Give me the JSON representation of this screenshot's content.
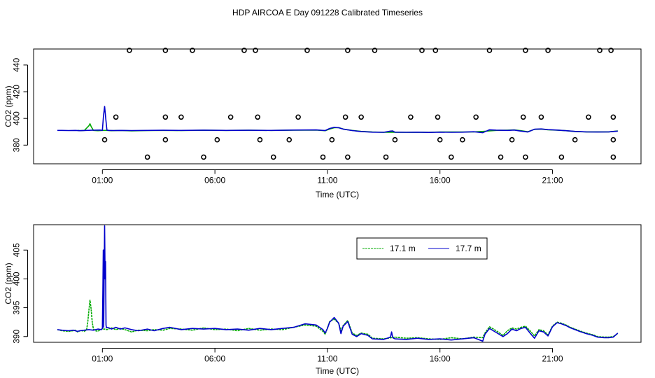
{
  "title": "HDP AIRCOA E  Day 091228  Calibrated Timeseries",
  "chart_data": [
    {
      "type": "scatter",
      "xlabel": "Time (UTC)",
      "ylabel": "CO2 (ppm)",
      "xlim": [
        -1.0,
        24.0
      ],
      "ylim": [
        366,
        452
      ],
      "x_ticks": [
        {
          "value": 1,
          "label": "01:00"
        },
        {
          "value": 6,
          "label": "06:00"
        },
        {
          "value": 11,
          "label": "11:00"
        },
        {
          "value": 16,
          "label": "16:00"
        },
        {
          "value": 21,
          "label": "21:00"
        }
      ],
      "y_ticks": [
        380,
        400,
        420,
        440
      ],
      "series": [
        {
          "color": "#00aa00",
          "x": [
            -0.1,
            0.0,
            0.2,
            0.4,
            0.45,
            0.5,
            0.6,
            0.8,
            1.0,
            1.1,
            1.2,
            1.4,
            1.8,
            2.3,
            3.0,
            3.7,
            4.5,
            5.5,
            6.5,
            7.5,
            8.5,
            9.5,
            10.5,
            10.9,
            11.1,
            11.3,
            11.5,
            11.7,
            12.1,
            12.5,
            13.0,
            13.5,
            14.0,
            14.5,
            15.0,
            15.5,
            16.0,
            16.5,
            17.0,
            17.5,
            18.0,
            18.5,
            19.0,
            19.3,
            19.6,
            19.9,
            20.2,
            20.5,
            20.8,
            21.2,
            21.6,
            22.0,
            22.5,
            23.0,
            23.5,
            23.9
          ],
          "y": [
            391.0,
            390.8,
            391.0,
            394.5,
            396.0,
            394.0,
            391.0,
            390.8,
            391.0,
            391.0,
            391.0,
            390.8,
            391.0,
            390.7,
            390.9,
            391.0,
            390.9,
            391.1,
            391.0,
            391.1,
            391.0,
            391.2,
            391.3,
            390.8,
            392.0,
            393.0,
            393.1,
            392.0,
            391.0,
            390.3,
            389.8,
            389.6,
            389.7,
            389.6,
            389.7,
            389.6,
            389.8,
            389.8,
            389.8,
            389.9,
            390.4,
            391.0,
            391.2,
            391.4,
            390.8,
            390.0,
            391.8,
            392.0,
            391.5,
            391.2,
            390.8,
            390.2,
            389.9,
            389.9,
            389.9,
            390.6
          ]
        },
        {
          "color": "#0000cc",
          "x": [
            -1.0,
            -0.8,
            -0.5,
            -0.2,
            0.0,
            0.3,
            0.5,
            0.7,
            0.9,
            1.0,
            1.05,
            1.1,
            1.15,
            1.2,
            1.3,
            1.5,
            1.8,
            2.3,
            3.0,
            3.7,
            4.5,
            5.5,
            6.5,
            7.5,
            8.5,
            9.5,
            10.5,
            10.9,
            11.1,
            11.3,
            11.5,
            11.7,
            12.1,
            12.5,
            13.0,
            13.5,
            13.8,
            13.9,
            14.0,
            14.5,
            15.0,
            15.5,
            16.0,
            16.5,
            17.0,
            17.5,
            17.9,
            18.0,
            18.2,
            18.5,
            19.0,
            19.3,
            19.6,
            19.9,
            20.2,
            20.5,
            20.8,
            21.2,
            21.6,
            22.0,
            22.5,
            23.0,
            23.5,
            23.9
          ],
          "y": [
            391.0,
            391.0,
            390.9,
            391.0,
            390.8,
            391.0,
            391.1,
            391.2,
            391.3,
            391.0,
            402.0,
            409.0,
            400.0,
            391.2,
            391.0,
            390.9,
            391.0,
            390.9,
            391.0,
            391.1,
            391.0,
            391.2,
            391.0,
            391.1,
            391.0,
            391.3,
            391.4,
            390.9,
            392.5,
            393.3,
            393.0,
            392.0,
            390.9,
            390.2,
            389.7,
            389.6,
            390.5,
            390.6,
            389.7,
            389.6,
            389.7,
            389.5,
            389.7,
            389.6,
            389.7,
            390.0,
            389.3,
            390.0,
            391.5,
            391.2,
            391.0,
            391.3,
            390.5,
            389.8,
            391.9,
            392.1,
            391.6,
            391.3,
            390.8,
            390.3,
            389.9,
            389.8,
            389.9,
            390.5
          ]
        }
      ],
      "markers": {
        "x": [
          1.1,
          1.6,
          2.2,
          3.0,
          3.8,
          3.8,
          3.8,
          4.5,
          5.0,
          5.5,
          6.1,
          6.7,
          7.3,
          7.8,
          7.9,
          8.0,
          8.6,
          9.3,
          9.7,
          10.1,
          10.8,
          11.2,
          11.8,
          11.9,
          11.9,
          12.5,
          13.1,
          13.6,
          14.0,
          14.7,
          15.2,
          15.8,
          15.9,
          16.0,
          16.5,
          17.0,
          17.6,
          18.2,
          18.7,
          19.2,
          19.7,
          19.8,
          19.8,
          20.5,
          20.8,
          21.4,
          22.0,
          22.6,
          23.1,
          23.6,
          23.7,
          23.7,
          23.7
        ],
        "y": [
          384,
          401,
          451,
          371,
          384,
          401,
          451,
          401,
          451,
          371,
          384,
          401,
          451,
          451,
          401,
          384,
          371,
          384,
          401,
          451,
          371,
          384,
          401,
          451,
          371,
          401,
          451,
          371,
          384,
          401,
          451,
          451,
          401,
          384,
          371,
          384,
          401,
          451,
          371,
          384,
          401,
          451,
          371,
          401,
          451,
          371,
          384,
          401,
          451,
          451,
          401,
          384,
          371
        ]
      }
    },
    {
      "type": "line",
      "xlabel": "Time (UTC)",
      "ylabel": "CO2 (ppm)",
      "xlim": [
        -1.0,
        24.0
      ],
      "ylim": [
        389.0,
        409.4
      ],
      "x_ticks": [
        {
          "value": 1,
          "label": "01:00"
        },
        {
          "value": 6,
          "label": "06:00"
        },
        {
          "value": 11,
          "label": "11:00"
        },
        {
          "value": 16,
          "label": "16:00"
        },
        {
          "value": 21,
          "label": "21:00"
        }
      ],
      "y_ticks": [
        390,
        395,
        400,
        405
      ],
      "legend": {
        "position": "top-right",
        "entries": [
          {
            "name": "17.1 m",
            "color": "#00aa00"
          },
          {
            "name": "17.7 m",
            "color": "#0000cc"
          }
        ]
      },
      "series": [
        {
          "name": "17.1 m",
          "color": "#00aa00",
          "x": [
            -1.0,
            -0.8,
            -0.5,
            -0.3,
            -0.2,
            -0.1,
            0.0,
            0.1,
            0.2,
            0.3,
            0.35,
            0.4,
            0.45,
            0.5,
            0.55,
            0.6,
            0.7,
            0.8,
            0.9,
            1.0,
            1.1,
            1.2,
            1.4,
            1.6,
            1.8,
            2.0,
            2.3,
            2.6,
            3.0,
            3.3,
            3.7,
            4.0,
            4.5,
            5.0,
            5.5,
            6.0,
            6.5,
            7.0,
            7.5,
            8.0,
            8.5,
            9.0,
            9.5,
            10.0,
            10.5,
            10.8,
            10.9,
            11.0,
            11.1,
            11.3,
            11.5,
            11.6,
            11.7,
            11.9,
            12.1,
            12.3,
            12.5,
            12.8,
            13.0,
            13.5,
            14.0,
            14.5,
            15.0,
            15.5,
            16.0,
            16.5,
            17.0,
            17.5,
            17.9,
            18.0,
            18.2,
            18.5,
            18.8,
            19.0,
            19.2,
            19.4,
            19.6,
            19.8,
            20.0,
            20.2,
            20.4,
            20.6,
            20.8,
            21.0,
            21.2,
            21.4,
            21.6,
            21.8,
            22.0,
            22.2,
            22.5,
            22.8,
            23.0,
            23.3,
            23.5,
            23.7,
            23.9
          ],
          "y": [
            391.2,
            391.0,
            390.9,
            391.0,
            391.1,
            390.8,
            391.0,
            391.0,
            390.9,
            391.2,
            392.5,
            394.5,
            396.3,
            394.8,
            392.5,
            391.3,
            391.0,
            390.9,
            391.2,
            391.3,
            391.3,
            391.2,
            391.5,
            391.2,
            391.4,
            391.2,
            390.8,
            391.1,
            391.0,
            391.2,
            391.1,
            391.4,
            391.3,
            391.1,
            391.5,
            391.2,
            391.3,
            391.0,
            391.4,
            391.1,
            391.3,
            391.2,
            391.6,
            392.0,
            391.8,
            390.9,
            390.4,
            391.5,
            392.6,
            393.0,
            392.3,
            391.0,
            391.9,
            392.8,
            390.6,
            390.2,
            390.6,
            390.4,
            389.7,
            389.6,
            389.9,
            389.7,
            389.8,
            389.6,
            389.5,
            389.8,
            389.6,
            389.9,
            389.8,
            390.6,
            391.7,
            391.0,
            390.2,
            391.0,
            391.5,
            391.3,
            391.6,
            391.8,
            391.0,
            390.1,
            391.2,
            391.0,
            390.3,
            391.8,
            392.5,
            392.3,
            392.0,
            391.6,
            391.3,
            391.0,
            390.6,
            390.3,
            390.0,
            389.9,
            389.9,
            390.0,
            390.5
          ],
          "dashed": true
        },
        {
          "name": "17.7 m",
          "color": "#0000cc",
          "x": [
            -1.0,
            -0.8,
            -0.5,
            -0.3,
            -0.1,
            0.0,
            0.2,
            0.4,
            0.6,
            0.8,
            0.95,
            1.0,
            1.02,
            1.04,
            1.06,
            1.08,
            1.1,
            1.12,
            1.14,
            1.16,
            1.18,
            1.2,
            1.3,
            1.4,
            1.6,
            1.8,
            2.0,
            2.3,
            2.6,
            3.0,
            3.3,
            3.7,
            4.0,
            4.5,
            5.0,
            5.5,
            6.0,
            6.5,
            7.0,
            7.5,
            8.0,
            8.5,
            9.0,
            9.5,
            10.0,
            10.5,
            10.8,
            10.9,
            11.0,
            11.1,
            11.3,
            11.5,
            11.6,
            11.7,
            11.9,
            12.1,
            12.3,
            12.5,
            12.8,
            13.0,
            13.5,
            13.8,
            13.85,
            13.9,
            14.0,
            14.5,
            15.0,
            15.5,
            16.0,
            16.5,
            17.0,
            17.5,
            17.9,
            18.0,
            18.2,
            18.5,
            18.8,
            19.0,
            19.2,
            19.4,
            19.6,
            19.8,
            20.0,
            20.2,
            20.4,
            20.6,
            20.8,
            21.0,
            21.2,
            21.4,
            21.6,
            21.8,
            22.0,
            22.2,
            22.5,
            22.8,
            23.0,
            23.3,
            23.5,
            23.7,
            23.9
          ],
          "y": [
            391.2,
            391.1,
            391.0,
            391.1,
            390.9,
            391.0,
            391.1,
            391.2,
            391.1,
            391.3,
            391.2,
            391.4,
            398.0,
            405.0,
            391.6,
            401.5,
            409.2,
            400.0,
            403.0,
            392.0,
            391.5,
            391.6,
            391.5,
            391.3,
            391.6,
            391.3,
            391.5,
            391.2,
            391.0,
            391.3,
            391.0,
            391.4,
            391.6,
            391.2,
            391.4,
            391.3,
            391.4,
            391.2,
            391.3,
            391.1,
            391.4,
            391.2,
            391.4,
            391.6,
            392.2,
            392.0,
            391.2,
            390.6,
            391.4,
            392.5,
            393.3,
            392.3,
            390.5,
            391.8,
            392.6,
            390.4,
            390.0,
            390.5,
            390.2,
            389.6,
            389.5,
            389.9,
            390.8,
            389.8,
            389.6,
            389.5,
            389.7,
            389.5,
            389.6,
            389.4,
            389.6,
            389.8,
            389.2,
            390.4,
            391.4,
            390.7,
            390.0,
            390.5,
            391.3,
            391.0,
            391.4,
            391.6,
            390.6,
            389.7,
            391.0,
            390.8,
            390.1,
            391.7,
            392.4,
            392.2,
            391.9,
            391.5,
            391.2,
            390.9,
            390.5,
            390.2,
            389.9,
            389.8,
            389.8,
            389.9,
            390.6
          ],
          "dashed": false
        }
      ]
    }
  ]
}
